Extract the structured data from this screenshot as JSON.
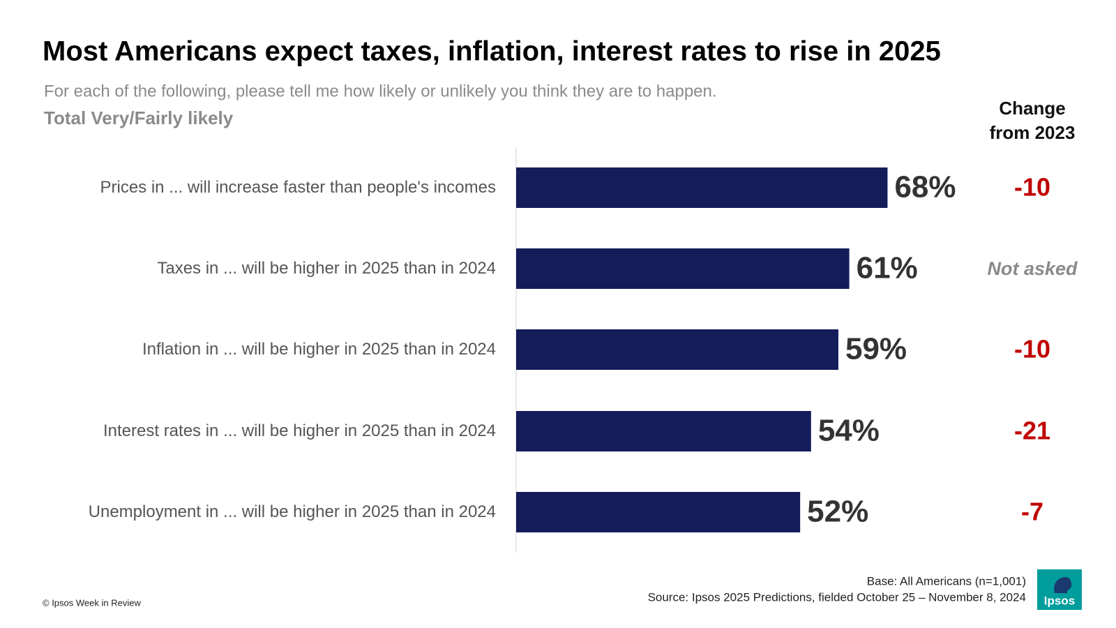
{
  "chart_data": {
    "type": "bar",
    "orientation": "horizontal",
    "title": "Most Americans expect taxes, inflation, interest rates to rise in 2025",
    "subtitle": "For each of the following, please tell me how likely or unlikely you think they are to happen.",
    "measure_label": "Total Very/Fairly likely",
    "categories": [
      "Prices in ... will increase faster than people's incomes",
      "Taxes in ... will be higher in 2025 than in 2024",
      "Inflation in ... will be higher in 2025 than in 2024",
      "Interest rates in ... will be higher in 2025 than in 2024",
      "Unemployment in ... will be higher in 2025 than in 2024"
    ],
    "values": [
      68,
      61,
      59,
      54,
      52
    ],
    "value_labels": [
      "68%",
      "61%",
      "59%",
      "54%",
      "52%"
    ],
    "color": "#141c5a",
    "xlim": [
      0,
      100
    ],
    "change": {
      "header": "Change from 2023",
      "values": [
        -10,
        null,
        -10,
        -21,
        -7
      ],
      "value_labels": [
        "-10",
        "Not asked",
        "-10",
        "-21",
        "-7"
      ],
      "color": "#c00000"
    },
    "base_note": "Base: All Americans (n=1,001)",
    "source": "Source: Ipsos 2025 Predictions, fielded October 25 – November 8, 2024",
    "copyright": "© Ipsos Week in Review",
    "logo": "Ipsos"
  }
}
